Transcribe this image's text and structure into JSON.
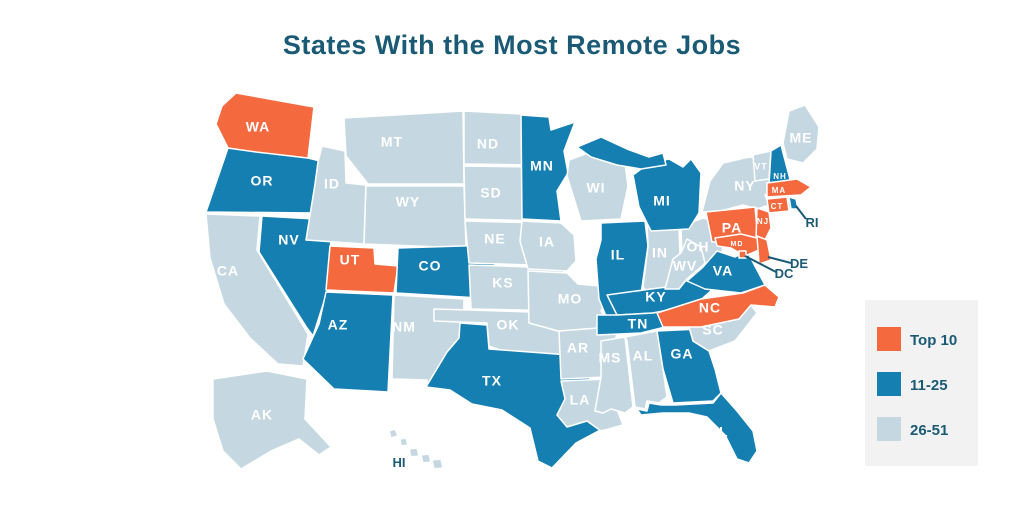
{
  "title": "States With the Most Remote Jobs",
  "colors": {
    "top10": "#F5693F",
    "mid": "#157FB2",
    "low": "#C5D8E2",
    "title": "#1A5A75",
    "legend_bg": "#F2F2F2",
    "state_label": "#FFFFFF",
    "callout": "#1A5A75",
    "background": "#FFFFFF"
  },
  "legend": {
    "items": [
      {
        "label": "Top 10",
        "category": "top10"
      },
      {
        "label": "11-25",
        "category": "mid"
      },
      {
        "label": "26-51",
        "category": "low"
      }
    ]
  },
  "states": [
    {
      "code": "CA",
      "category": "low"
    },
    {
      "code": "OR",
      "category": "mid"
    },
    {
      "code": "WA",
      "category": "top10"
    },
    {
      "code": "NV",
      "category": "mid"
    },
    {
      "code": "ID",
      "category": "low"
    },
    {
      "code": "MT",
      "category": "low"
    },
    {
      "code": "WY",
      "category": "low"
    },
    {
      "code": "UT",
      "category": "top10"
    },
    {
      "code": "CO",
      "category": "mid"
    },
    {
      "code": "AZ",
      "category": "mid"
    },
    {
      "code": "NM",
      "category": "low"
    },
    {
      "code": "ND",
      "category": "low"
    },
    {
      "code": "SD",
      "category": "low"
    },
    {
      "code": "NE",
      "category": "low"
    },
    {
      "code": "KS",
      "category": "low"
    },
    {
      "code": "OK",
      "category": "low"
    },
    {
      "code": "TX",
      "category": "mid"
    },
    {
      "code": "MN",
      "category": "mid"
    },
    {
      "code": "IA",
      "category": "low"
    },
    {
      "code": "WI",
      "category": "low"
    },
    {
      "code": "MO",
      "category": "low"
    },
    {
      "code": "IL",
      "category": "mid"
    },
    {
      "code": "IN",
      "category": "low"
    },
    {
      "code": "OH",
      "category": "low"
    },
    {
      "code": "MI",
      "category": "mid"
    },
    {
      "code": "AR",
      "category": "low"
    },
    {
      "code": "LA",
      "category": "low"
    },
    {
      "code": "MS",
      "category": "low"
    },
    {
      "code": "AL",
      "category": "low"
    },
    {
      "code": "GA",
      "category": "mid"
    },
    {
      "code": "SC",
      "category": "low"
    },
    {
      "code": "FL",
      "category": "mid"
    },
    {
      "code": "KY",
      "category": "mid"
    },
    {
      "code": "TN",
      "category": "mid"
    },
    {
      "code": "WV",
      "category": "low"
    },
    {
      "code": "NY",
      "category": "low"
    },
    {
      "code": "VT",
      "category": "low"
    },
    {
      "code": "NH",
      "category": "mid"
    },
    {
      "code": "ME",
      "category": "low"
    },
    {
      "code": "PA",
      "category": "top10"
    },
    {
      "code": "NJ",
      "category": "top10"
    },
    {
      "code": "VA",
      "category": "mid"
    },
    {
      "code": "NC",
      "category": "top10"
    },
    {
      "code": "MA",
      "category": "top10"
    },
    {
      "code": "CT",
      "category": "top10"
    },
    {
      "code": "RI",
      "category": "mid"
    },
    {
      "code": "MD",
      "category": "top10"
    },
    {
      "code": "DE",
      "category": "top10"
    },
    {
      "code": "DC",
      "category": "top10"
    },
    {
      "code": "AK",
      "category": "low"
    },
    {
      "code": "HI",
      "category": "low"
    }
  ]
}
